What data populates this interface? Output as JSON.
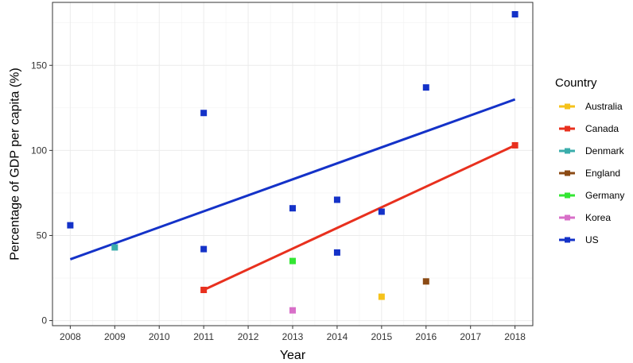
{
  "chart_data": {
    "type": "scatter",
    "title": "",
    "xlabel": "Year",
    "ylabel": "Percentage of GDP per capita (%)",
    "xlim": [
      2007.6,
      2018.4
    ],
    "ylim": [
      -3,
      187
    ],
    "x_ticks": [
      2008,
      2009,
      2010,
      2011,
      2012,
      2013,
      2014,
      2015,
      2016,
      2017,
      2018
    ],
    "x_tick_labels": [
      "2008",
      "2009",
      "2010",
      "2011",
      "2012",
      "2013",
      "2014",
      "2015",
      "2016",
      "2017",
      "2018"
    ],
    "y_ticks": [
      0,
      50,
      100,
      150
    ],
    "y_tick_labels": [
      "0",
      "50",
      "100",
      "150"
    ],
    "grid": true,
    "legend_title": "Country",
    "legend_position": "right",
    "series": [
      {
        "name": "Australia",
        "color": "#F5C21B",
        "points": [
          [
            2015,
            14
          ]
        ]
      },
      {
        "name": "Canada",
        "color": "#E8301E",
        "points": [
          [
            2011,
            18
          ],
          [
            2018,
            103
          ]
        ]
      },
      {
        "name": "Denmark",
        "color": "#3AADAB",
        "points": [
          [
            2009,
            43
          ]
        ]
      },
      {
        "name": "England",
        "color": "#8B4A14",
        "points": [
          [
            2016,
            23
          ]
        ]
      },
      {
        "name": "Germany",
        "color": "#33E633",
        "points": [
          [
            2013,
            35
          ]
        ]
      },
      {
        "name": "Korea",
        "color": "#D86FC8",
        "points": [
          [
            2013,
            6
          ]
        ]
      },
      {
        "name": "US",
        "color": "#1432C8",
        "points": [
          [
            2008,
            56
          ],
          [
            2011,
            122
          ],
          [
            2011,
            42
          ],
          [
            2013,
            66
          ],
          [
            2014,
            71
          ],
          [
            2014,
            40
          ],
          [
            2015,
            64
          ],
          [
            2016,
            137
          ],
          [
            2018,
            180
          ]
        ]
      }
    ],
    "trend_lines": [
      {
        "name": "US",
        "color": "#1432C8",
        "from": [
          2008,
          36
        ],
        "to": [
          2018,
          130
        ]
      },
      {
        "name": "Canada",
        "color": "#E8301E",
        "from": [
          2011,
          18
        ],
        "to": [
          2018,
          103
        ]
      }
    ]
  }
}
